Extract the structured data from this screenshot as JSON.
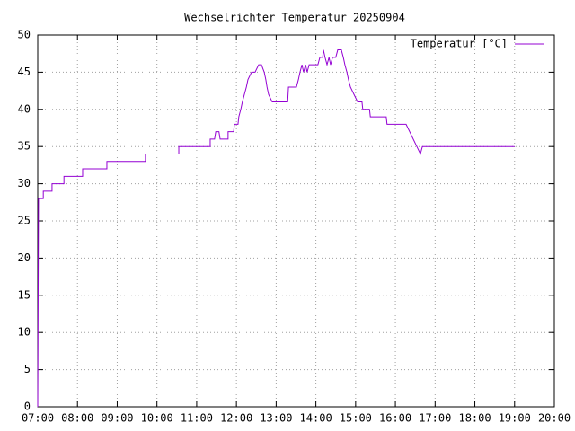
{
  "chart_data": {
    "type": "line",
    "title": "Wechselrichter Temperatur 20250904",
    "x": [
      7.0,
      7.02,
      7.14,
      7.14,
      7.36,
      7.36,
      7.66,
      7.66,
      8.13,
      8.13,
      8.74,
      8.74,
      9.71,
      9.71,
      10.55,
      10.55,
      11.34,
      11.34,
      11.45,
      11.48,
      11.56,
      11.59,
      11.79,
      11.79,
      11.93,
      11.95,
      12.04,
      12.06,
      12.11,
      12.15,
      12.2,
      12.25,
      12.29,
      12.38,
      12.47,
      12.56,
      12.63,
      12.7,
      12.74,
      12.77,
      12.81,
      12.9,
      13.29,
      13.31,
      13.51,
      13.56,
      13.6,
      13.65,
      13.69,
      13.74,
      13.78,
      13.83,
      14.05,
      14.1,
      14.17,
      14.19,
      14.23,
      14.28,
      14.33,
      14.37,
      14.42,
      14.5,
      14.55,
      14.64,
      14.69,
      14.73,
      14.78,
      14.82,
      14.87,
      14.96,
      15.05,
      15.16,
      15.18,
      15.35,
      15.37,
      15.77,
      15.79,
      16.27,
      16.63,
      16.68,
      19.0
    ],
    "series": [
      {
        "name": "Temperatur [°C]",
        "color": "#9400d3",
        "values": [
          0,
          28,
          28,
          29,
          29,
          30,
          30,
          31,
          31,
          32,
          32,
          33,
          33,
          34,
          34,
          35,
          35,
          36,
          36,
          37,
          37,
          36,
          36,
          37,
          37,
          38,
          38,
          39,
          40,
          41,
          42,
          43,
          44,
          45,
          45,
          46,
          46,
          45,
          44,
          43,
          42,
          41,
          41,
          43,
          43,
          44,
          45,
          46,
          45,
          46,
          45,
          46,
          46,
          47,
          47,
          48,
          47,
          46,
          47,
          46,
          47,
          47,
          48,
          48,
          47,
          46,
          45,
          44,
          43,
          42,
          41,
          41,
          40,
          40,
          39,
          39,
          38,
          38,
          34,
          35,
          35
        ]
      }
    ],
    "xlim": [
      7,
      20
    ],
    "xticks": [
      {
        "value": 7,
        "label": "07:00"
      },
      {
        "value": 8,
        "label": "08:00"
      },
      {
        "value": 9,
        "label": "09:00"
      },
      {
        "value": 10,
        "label": "10:00"
      },
      {
        "value": 11,
        "label": "11:00"
      },
      {
        "value": 12,
        "label": "12:00"
      },
      {
        "value": 13,
        "label": "13:00"
      },
      {
        "value": 14,
        "label": "14:00"
      },
      {
        "value": 15,
        "label": "15:00"
      },
      {
        "value": 16,
        "label": "16:00"
      },
      {
        "value": 17,
        "label": "17:00"
      },
      {
        "value": 18,
        "label": "18:00"
      },
      {
        "value": 19,
        "label": "19:00"
      },
      {
        "value": 20,
        "label": "20:00"
      }
    ],
    "ylim": [
      0,
      50
    ],
    "yticks": [
      0,
      5,
      10,
      15,
      20,
      25,
      30,
      35,
      40,
      45,
      50
    ],
    "grid": true,
    "legend": "top-right"
  }
}
